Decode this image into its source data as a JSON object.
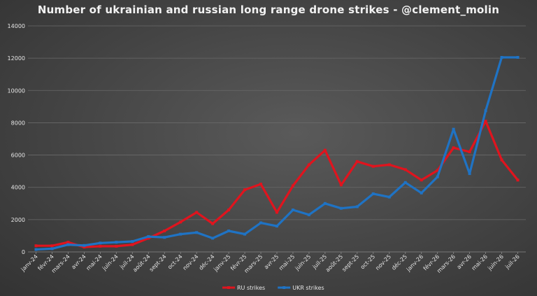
{
  "chart_data": {
    "type": "line",
    "title": "Number of ukrainian and russian long range drone strikes - @clement_molin",
    "xlabel": "",
    "ylabel": "",
    "ylim": [
      0,
      14000
    ],
    "yticks": [
      0,
      2000,
      4000,
      6000,
      8000,
      10000,
      12000,
      14000
    ],
    "ytick_labels": [
      "0",
      "2000",
      "4000",
      "6000",
      "8000",
      "10000",
      "12000",
      "14000"
    ],
    "grid": true,
    "legend_position": "bottom",
    "categories": [
      "janv-24",
      "févr-24",
      "mars-24",
      "avr-24",
      "mai-24",
      "juin-24",
      "juil-24",
      "août-24",
      "sept-24",
      "oct-24",
      "nov-24",
      "déc-24",
      "janv-25",
      "févr-25",
      "mars-25",
      "avr-25",
      "mai-25",
      "juin-25",
      "juil-25",
      "août-25",
      "sept-25",
      "oct-25",
      "nov-25",
      "déc-25",
      "janv-26",
      "févr-26",
      "mars-26",
      "avr-26",
      "mai-26",
      "juin-26",
      "juil-26"
    ],
    "series": [
      {
        "name": "RU strikes",
        "color": "#e0141e",
        "values": [
          380,
          380,
          600,
          300,
          350,
          350,
          450,
          850,
          1300,
          1850,
          2450,
          1750,
          2600,
          3850,
          4200,
          2450,
          4100,
          5400,
          6300,
          4150,
          5600,
          5300,
          5400,
          5100,
          4450,
          5050,
          6450,
          6200,
          8100,
          5700,
          4450
        ]
      },
      {
        "name": "UKR strikes",
        "color": "#1f73c4",
        "values": [
          150,
          200,
          450,
          400,
          550,
          600,
          650,
          950,
          900,
          1100,
          1200,
          850,
          1300,
          1100,
          1800,
          1600,
          2600,
          2300,
          3000,
          2700,
          2800,
          3600,
          3400,
          4300,
          3650,
          4650,
          7600,
          4850,
          8750,
          12050,
          12050
        ]
      }
    ]
  }
}
